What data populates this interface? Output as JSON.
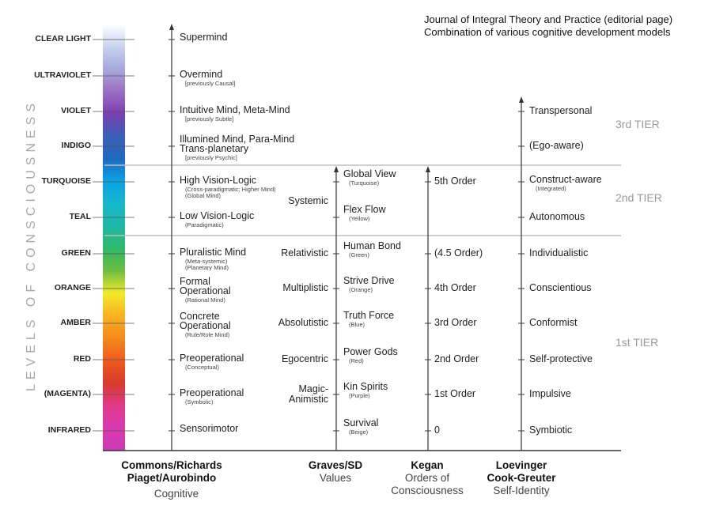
{
  "notes": {
    "line1": "Journal of Integral Theory and Practice (editorial page)",
    "line2": "Combination of various cognitive development models"
  },
  "axis_title": "LEVELS OF CONSCIOUSNESS",
  "colors": {
    "spectrum": [
      "#ffffff",
      "#c9d4ee",
      "#a7a9dd",
      "#9b6fc4",
      "#7a3fb3",
      "#3b5fb6",
      "#1f6ac0",
      "#0aa1e2",
      "#16b7cf",
      "#1fb8a4",
      "#2fb86a",
      "#6fbd3f",
      "#f2ea2a",
      "#f7b21f",
      "#f48a1e",
      "#ee5a1f",
      "#d93a2a",
      "#e03a8a",
      "#d93ab0",
      "#cc39b6"
    ],
    "grid_line": "#bdbdbd",
    "axis_line": "#333333",
    "tier_text": "#9a9a9a"
  },
  "levels": [
    {
      "name": "CLEAR LIGHT"
    },
    {
      "name": "ULTRAVIOLET"
    },
    {
      "name": "VIOLET"
    },
    {
      "name": "INDIGO"
    },
    {
      "name": "TURQUOISE"
    },
    {
      "name": "TEAL"
    },
    {
      "name": "GREEN"
    },
    {
      "name": "ORANGE"
    },
    {
      "name": "AMBER"
    },
    {
      "name": "RED"
    },
    {
      "name": "(MAGENTA)"
    },
    {
      "name": "INFRARED"
    }
  ],
  "cognitive": [
    {
      "main": [
        "Supermind"
      ],
      "sub": []
    },
    {
      "main": [
        "Overmind"
      ],
      "sub": [
        "[previously Causal]"
      ]
    },
    {
      "main": [
        "Intuitive Mind, Meta-Mind"
      ],
      "sub": [
        "[previously Subtle]"
      ]
    },
    {
      "main": [
        "Illumined Mind, Para-Mind",
        "Trans-planetary"
      ],
      "sub": [
        "[previously Psychic]"
      ]
    },
    {
      "main": [
        "High Vision-Logic"
      ],
      "sub": [
        "(Cross-paradigmatic; Higher Mind)",
        "(Global Mind)"
      ]
    },
    {
      "main": [
        "Low Vision-Logic"
      ],
      "sub": [
        "(Paradigmatic)"
      ]
    },
    {
      "main": [
        "Pluralistic Mind"
      ],
      "sub": [
        "(Meta-systemic)",
        "(Planetary Mind)"
      ]
    },
    {
      "main": [
        "Formal",
        "Operational"
      ],
      "sub": [
        "(Rational Mind)"
      ]
    },
    {
      "main": [
        "Concrete",
        "Operational"
      ],
      "sub": [
        "(Rule/Role Mind)"
      ]
    },
    {
      "main": [
        "Preoperational"
      ],
      "sub": [
        "(Conceptual)"
      ]
    },
    {
      "main": [
        "Preoperational"
      ],
      "sub": [
        "(Symbolic)"
      ]
    },
    {
      "main": [
        "Sensorimotor"
      ],
      "sub": []
    }
  ],
  "graves_left": [
    {
      "lines": [
        "Systemic"
      ]
    },
    {
      "lines": [
        "Relativistic"
      ]
    },
    {
      "lines": [
        "Multiplistic"
      ]
    },
    {
      "lines": [
        "Absolutistic"
      ]
    },
    {
      "lines": [
        "Egocentric"
      ]
    },
    {
      "lines": [
        "Magic-",
        "Animistic"
      ]
    }
  ],
  "graves_right": [
    {
      "main": "Global View",
      "sub": "(Turquoise)"
    },
    {
      "main": "Flex Flow",
      "sub": "(Yellow)"
    },
    {
      "main": "Human Bond",
      "sub": "(Green)"
    },
    {
      "main": "Strive Drive",
      "sub": "(Orange)"
    },
    {
      "main": "Truth Force",
      "sub": "(Blue)"
    },
    {
      "main": "Power Gods",
      "sub": "(Red)"
    },
    {
      "main": "Kin Spirits",
      "sub": "(Purple)"
    },
    {
      "main": "Survival",
      "sub": "(Beige)"
    }
  ],
  "kegan": [
    "5th Order",
    "(4.5 Order)",
    "4th Order",
    "3rd Order",
    "2nd Order",
    "1st Order",
    "0"
  ],
  "loevinger": [
    "Transpersonal",
    "(Ego-aware)",
    "Construct-aware",
    "Autonomous",
    "Individualistic",
    "Conscientious",
    "Conformist",
    "Self-protective",
    "Impulsive",
    "Symbiotic"
  ],
  "loevinger_sub": {
    "integrated": "(Integrated)"
  },
  "tiers": {
    "third": "3rd TIER",
    "second": "2nd TIER",
    "first": "1st TIER"
  },
  "columns": {
    "cognitive": {
      "line1": "Commons/Richards",
      "line2": "Piaget/Aurobindo",
      "sub": "Cognitive"
    },
    "graves": {
      "line1": "Graves/SD",
      "sub": "Values"
    },
    "kegan": {
      "line1": "Kegan",
      "sub1": "Orders of",
      "sub2": "Consciousness"
    },
    "loevinger": {
      "line1": "Loevinger",
      "line2": "Cook-Greuter",
      "sub": "Self-Identity"
    }
  }
}
